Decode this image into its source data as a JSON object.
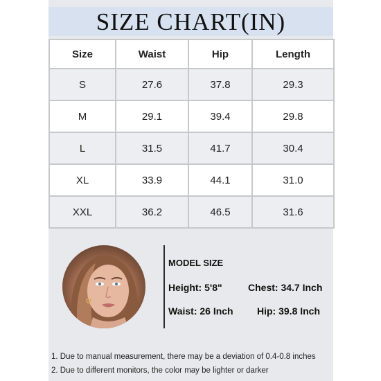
{
  "title": "SIZE CHART(IN)",
  "table": {
    "headers": [
      "Size",
      "Waist",
      "Hip",
      "Length"
    ],
    "rows": [
      [
        "S",
        "27.6",
        "37.8",
        "29.3"
      ],
      [
        "M",
        "29.1",
        "39.4",
        "29.8"
      ],
      [
        "L",
        "31.5",
        "41.7",
        "30.4"
      ],
      [
        "XL",
        "33.9",
        "44.1",
        "31.0"
      ],
      [
        "XXL",
        "36.2",
        "46.5",
        "31.6"
      ]
    ]
  },
  "model": {
    "title": "MODEL SIZE",
    "height": "Height: 5'8\"",
    "chest": "Chest: 34.7 Inch",
    "waist": "Waist: 26 Inch",
    "hip": "Hip: 39.8 Inch"
  },
  "notes": [
    "1. Due to manual measurement, there may be a deviation of 0.4-0.8 inches",
    "2. Due to different monitors, the color may be lighter or darker"
  ],
  "colors": {
    "panel_background": "#e8e9ec",
    "title_bar": "#d7e1ef",
    "shaded_row": "#eceef1",
    "grid_line": "#c6c8cc"
  }
}
